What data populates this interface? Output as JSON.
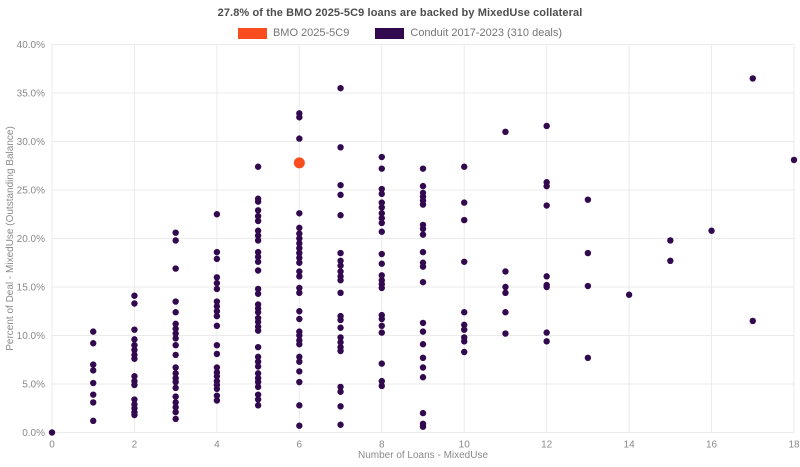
{
  "title": "27.8% of the BMO 2025-5C9 loans are backed by MixedUse collateral",
  "legend": [
    {
      "label": "BMO 2025-5C9",
      "color": "#f94d1f"
    },
    {
      "label": "Conduit 2017-2023 (310 deals)",
      "color": "#32094e"
    }
  ],
  "chart_data": {
    "type": "scatter",
    "title": "27.8% of the BMO 2025-5C9 loans are backed by MixedUse collateral",
    "xlabel": "Number of Loans - MixedUse",
    "ylabel": "Percent of Deal - MixedUse (Outstanding Balance)",
    "xlim": [
      0,
      18
    ],
    "ylim": [
      0,
      40
    ],
    "grid": true,
    "grid_color": "#ebebeb",
    "legend_position": "top-center",
    "x_ticks": [
      0,
      2,
      4,
      6,
      8,
      10,
      12,
      14,
      16,
      18
    ],
    "x_tick_labels": [
      "0",
      "2",
      "4",
      "6",
      "8",
      "10",
      "12",
      "14",
      "16",
      "18"
    ],
    "y_ticks": [
      0,
      5,
      10,
      15,
      20,
      25,
      30,
      35,
      40
    ],
    "y_tick_labels": [
      "0.0%",
      "5.0%",
      "10.0%",
      "15.0%",
      "20.0%",
      "25.0%",
      "30.0%",
      "35.0%",
      "40.0%"
    ],
    "series": [
      {
        "name": "BMO 2025-5C9",
        "color": "#f94d1f",
        "marker_size": 5.5,
        "points": [
          [
            6,
            27.8
          ]
        ]
      },
      {
        "name": "Conduit 2017-2023 (310 deals)",
        "color": "#32094e",
        "marker_size": 3.2,
        "points": [
          [
            0,
            0.0
          ],
          [
            1,
            10.4
          ],
          [
            1,
            9.2
          ],
          [
            1,
            7.0
          ],
          [
            1,
            6.4
          ],
          [
            1,
            5.1
          ],
          [
            1,
            3.9
          ],
          [
            1,
            3.1
          ],
          [
            1,
            1.2
          ],
          [
            2,
            14.1
          ],
          [
            2,
            13.3
          ],
          [
            2,
            10.6
          ],
          [
            2,
            9.6
          ],
          [
            2,
            9.0
          ],
          [
            2,
            8.5
          ],
          [
            2,
            8.0
          ],
          [
            2,
            7.6
          ],
          [
            2,
            5.8
          ],
          [
            2,
            5.3
          ],
          [
            2,
            4.9
          ],
          [
            2,
            3.4
          ],
          [
            2,
            2.9
          ],
          [
            2,
            2.5
          ],
          [
            2,
            2.1
          ],
          [
            2,
            1.8
          ],
          [
            3,
            20.6
          ],
          [
            3,
            19.8
          ],
          [
            3,
            16.9
          ],
          [
            3,
            13.5
          ],
          [
            3,
            12.4
          ],
          [
            3,
            11.2
          ],
          [
            3,
            10.7
          ],
          [
            3,
            10.2
          ],
          [
            3,
            9.7
          ],
          [
            3,
            9.0
          ],
          [
            3,
            8.0
          ],
          [
            3,
            6.7
          ],
          [
            3,
            6.1
          ],
          [
            3,
            5.6
          ],
          [
            3,
            5.2
          ],
          [
            3,
            4.6
          ],
          [
            3,
            3.7
          ],
          [
            3,
            3.1
          ],
          [
            3,
            2.6
          ],
          [
            3,
            2.1
          ],
          [
            3,
            1.4
          ],
          [
            4,
            22.5
          ],
          [
            4,
            18.6
          ],
          [
            4,
            17.9
          ],
          [
            4,
            16.0
          ],
          [
            4,
            15.4
          ],
          [
            4,
            14.8
          ],
          [
            4,
            13.5
          ],
          [
            4,
            13.0
          ],
          [
            4,
            12.5
          ],
          [
            4,
            12.0
          ],
          [
            4,
            11.0
          ],
          [
            4,
            9.0
          ],
          [
            4,
            8.1
          ],
          [
            4,
            6.7
          ],
          [
            4,
            6.2
          ],
          [
            4,
            5.8
          ],
          [
            4,
            5.3
          ],
          [
            4,
            4.9
          ],
          [
            4,
            4.5
          ],
          [
            4,
            3.8
          ],
          [
            4,
            3.3
          ],
          [
            5,
            27.4
          ],
          [
            5,
            24.1
          ],
          [
            5,
            23.8
          ],
          [
            5,
            22.9
          ],
          [
            5,
            22.3
          ],
          [
            5,
            21.8
          ],
          [
            5,
            20.8
          ],
          [
            5,
            20.3
          ],
          [
            5,
            19.8
          ],
          [
            5,
            18.6
          ],
          [
            5,
            18.1
          ],
          [
            5,
            17.6
          ],
          [
            5,
            16.7
          ],
          [
            5,
            14.8
          ],
          [
            5,
            14.3
          ],
          [
            5,
            13.2
          ],
          [
            5,
            12.8
          ],
          [
            5,
            12.4
          ],
          [
            5,
            11.8
          ],
          [
            5,
            11.4
          ],
          [
            5,
            10.9
          ],
          [
            5,
            10.5
          ],
          [
            5,
            8.8
          ],
          [
            5,
            7.8
          ],
          [
            5,
            7.3
          ],
          [
            5,
            6.8
          ],
          [
            5,
            6.1
          ],
          [
            5,
            5.6
          ],
          [
            5,
            5.2
          ],
          [
            5,
            4.7
          ],
          [
            5,
            3.9
          ],
          [
            5,
            3.4
          ],
          [
            5,
            2.8
          ],
          [
            6,
            32.9
          ],
          [
            6,
            32.5
          ],
          [
            6,
            30.3
          ],
          [
            6,
            22.6
          ],
          [
            6,
            21.1
          ],
          [
            6,
            20.5
          ],
          [
            6,
            20.0
          ],
          [
            6,
            19.5
          ],
          [
            6,
            19.0
          ],
          [
            6,
            18.5
          ],
          [
            6,
            18.0
          ],
          [
            6,
            17.5
          ],
          [
            6,
            16.6
          ],
          [
            6,
            16.1
          ],
          [
            6,
            14.9
          ],
          [
            6,
            14.4
          ],
          [
            6,
            12.5
          ],
          [
            6,
            11.7
          ],
          [
            6,
            10.4
          ],
          [
            6,
            10.0
          ],
          [
            6,
            9.5
          ],
          [
            6,
            9.1
          ],
          [
            6,
            7.8
          ],
          [
            6,
            7.3
          ],
          [
            6,
            6.3
          ],
          [
            6,
            5.2
          ],
          [
            6,
            2.8
          ],
          [
            6,
            0.7
          ],
          [
            7,
            35.5
          ],
          [
            7,
            29.4
          ],
          [
            7,
            25.5
          ],
          [
            7,
            24.5
          ],
          [
            7,
            22.4
          ],
          [
            7,
            18.5
          ],
          [
            7,
            17.7
          ],
          [
            7,
            17.2
          ],
          [
            7,
            16.6
          ],
          [
            7,
            16.1
          ],
          [
            7,
            15.7
          ],
          [
            7,
            14.4
          ],
          [
            7,
            12.0
          ],
          [
            7,
            11.6
          ],
          [
            7,
            10.8
          ],
          [
            7,
            9.8
          ],
          [
            7,
            9.3
          ],
          [
            7,
            8.8
          ],
          [
            7,
            8.4
          ],
          [
            7,
            4.7
          ],
          [
            7,
            4.2
          ],
          [
            7,
            2.7
          ],
          [
            7,
            0.8
          ],
          [
            8,
            28.4
          ],
          [
            8,
            27.2
          ],
          [
            8,
            25.1
          ],
          [
            8,
            24.6
          ],
          [
            8,
            23.7
          ],
          [
            8,
            23.2
          ],
          [
            8,
            22.6
          ],
          [
            8,
            22.1
          ],
          [
            8,
            21.6
          ],
          [
            8,
            20.7
          ],
          [
            8,
            18.4
          ],
          [
            8,
            17.4
          ],
          [
            8,
            16.2
          ],
          [
            8,
            15.7
          ],
          [
            8,
            15.3
          ],
          [
            8,
            14.9
          ],
          [
            8,
            12.1
          ],
          [
            8,
            11.7
          ],
          [
            8,
            11.0
          ],
          [
            8,
            10.3
          ],
          [
            8,
            7.1
          ],
          [
            8,
            5.3
          ],
          [
            8,
            4.8
          ],
          [
            9,
            27.2
          ],
          [
            9,
            25.4
          ],
          [
            9,
            24.7
          ],
          [
            9,
            24.3
          ],
          [
            9,
            23.9
          ],
          [
            9,
            23.5
          ],
          [
            9,
            21.4
          ],
          [
            9,
            21.0
          ],
          [
            9,
            20.4
          ],
          [
            9,
            18.6
          ],
          [
            9,
            17.5
          ],
          [
            9,
            17.1
          ],
          [
            9,
            15.5
          ],
          [
            9,
            11.3
          ],
          [
            9,
            10.4
          ],
          [
            9,
            9.1
          ],
          [
            9,
            7.7
          ],
          [
            9,
            6.7
          ],
          [
            9,
            5.7
          ],
          [
            9,
            2.0
          ],
          [
            9,
            0.9
          ],
          [
            9,
            0.6
          ],
          [
            10,
            27.4
          ],
          [
            10,
            23.7
          ],
          [
            10,
            21.9
          ],
          [
            10,
            17.6
          ],
          [
            10,
            12.4
          ],
          [
            10,
            11.1
          ],
          [
            10,
            10.6
          ],
          [
            10,
            9.8
          ],
          [
            10,
            9.4
          ],
          [
            10,
            8.3
          ],
          [
            11,
            31.0
          ],
          [
            11,
            16.6
          ],
          [
            11,
            15.0
          ],
          [
            11,
            14.4
          ],
          [
            11,
            12.4
          ],
          [
            11,
            10.2
          ],
          [
            12,
            31.6
          ],
          [
            12,
            25.8
          ],
          [
            12,
            25.4
          ],
          [
            12,
            23.4
          ],
          [
            12,
            16.1
          ],
          [
            12,
            15.2
          ],
          [
            12,
            15.0
          ],
          [
            12,
            10.3
          ],
          [
            12,
            9.4
          ],
          [
            13,
            24.0
          ],
          [
            13,
            18.5
          ],
          [
            13,
            15.1
          ],
          [
            13,
            7.7
          ],
          [
            14,
            14.2
          ],
          [
            15,
            19.8
          ],
          [
            15,
            17.7
          ],
          [
            16,
            20.8
          ],
          [
            17,
            36.5
          ],
          [
            17,
            11.5
          ],
          [
            18,
            28.1
          ]
        ]
      }
    ]
  }
}
